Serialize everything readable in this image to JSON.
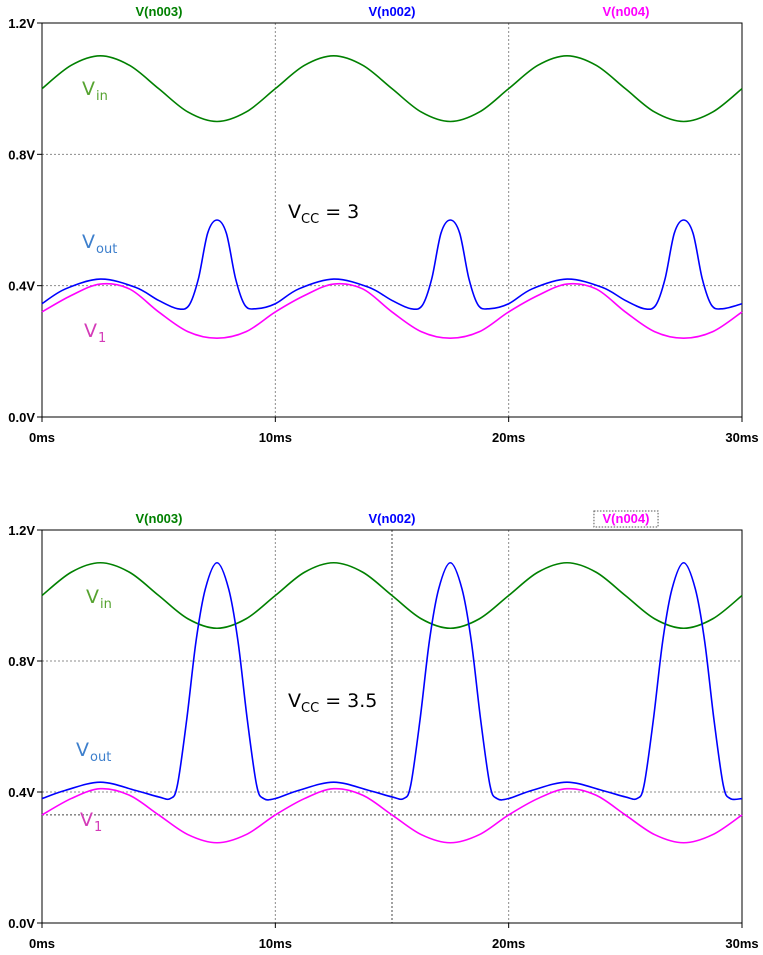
{
  "colors": {
    "vin": "#008000",
    "vout": "#0000ff",
    "v1": "#ff00ff",
    "vin_label": "#56a330",
    "vout_label": "#3d7fcc",
    "v1_label": "#d43bb8"
  },
  "chart_data": [
    {
      "type": "line",
      "title": "",
      "xlabel": "",
      "ylabel": "",
      "xlim": [
        0,
        30
      ],
      "ylim": [
        0,
        1.2
      ],
      "x_unit": "ms",
      "x_ticks": [
        "0ms",
        "10ms",
        "20ms",
        "30ms"
      ],
      "y_ticks": [
        "0.0V",
        "0.4V",
        "0.8V",
        "1.2V"
      ],
      "grid": true,
      "legend": [
        "V(n003)",
        "V(n002)",
        "V(n004)"
      ],
      "annotation": {
        "main": "V",
        "sub": "CC",
        "rest": " = 3"
      },
      "series": [
        {
          "name": "V(n003)",
          "label": "V",
          "label_sub": "in",
          "color": "#008000",
          "x": [
            0,
            1.25,
            2.5,
            3.75,
            5,
            6.25,
            7.5,
            8.75,
            10,
            11.25,
            12.5,
            13.75,
            15,
            16.25,
            17.5,
            18.75,
            20,
            21.25,
            22.5,
            23.75,
            25,
            26.25,
            27.5,
            28.75,
            30
          ],
          "values": [
            1.0,
            1.071,
            1.1,
            1.071,
            1.0,
            0.929,
            0.9,
            0.929,
            1.0,
            1.071,
            1.1,
            1.071,
            1.0,
            0.929,
            0.9,
            0.929,
            1.0,
            1.071,
            1.1,
            1.071,
            1.0,
            0.929,
            0.9,
            0.929,
            1.0
          ]
        },
        {
          "name": "V(n002)",
          "label": "V",
          "label_sub": "out",
          "color": "#0000ff",
          "x": [
            0,
            1,
            2.5,
            4,
            5,
            5.8,
            6.3,
            6.7,
            7.1,
            7.5,
            7.9,
            8.3,
            8.7,
            9.2,
            10,
            11,
            12.5,
            14,
            15,
            15.8,
            16.3,
            16.7,
            17.1,
            17.5,
            17.9,
            18.3,
            18.7,
            19.2,
            20,
            21,
            22.5,
            24,
            25,
            25.8,
            26.3,
            26.7,
            27.1,
            27.5,
            27.9,
            28.3,
            28.7,
            29.2,
            30
          ],
          "values": [
            0.345,
            0.39,
            0.42,
            0.395,
            0.355,
            0.33,
            0.34,
            0.42,
            0.56,
            0.6,
            0.56,
            0.42,
            0.34,
            0.33,
            0.345,
            0.39,
            0.42,
            0.395,
            0.355,
            0.33,
            0.34,
            0.42,
            0.56,
            0.6,
            0.56,
            0.42,
            0.34,
            0.33,
            0.345,
            0.39,
            0.42,
            0.395,
            0.355,
            0.33,
            0.34,
            0.42,
            0.56,
            0.6,
            0.56,
            0.42,
            0.34,
            0.33,
            0.345
          ]
        },
        {
          "name": "V(n004)",
          "label": "V",
          "label_sub": "1",
          "color": "#ff00ff",
          "x": [
            0,
            1.25,
            2.5,
            3.75,
            5,
            6.25,
            7.5,
            8.75,
            10,
            11.25,
            12.5,
            13.75,
            15,
            16.25,
            17.5,
            18.75,
            20,
            21.25,
            22.5,
            23.75,
            25,
            26.25,
            27.5,
            28.75,
            30
          ],
          "values": [
            0.32,
            0.37,
            0.405,
            0.39,
            0.32,
            0.26,
            0.24,
            0.26,
            0.32,
            0.37,
            0.405,
            0.39,
            0.32,
            0.26,
            0.24,
            0.26,
            0.32,
            0.37,
            0.405,
            0.39,
            0.32,
            0.26,
            0.24,
            0.26,
            0.32
          ]
        }
      ]
    },
    {
      "type": "line",
      "title": "",
      "xlabel": "",
      "ylabel": "",
      "xlim": [
        0,
        30
      ],
      "ylim": [
        0,
        1.2
      ],
      "x_unit": "ms",
      "x_ticks": [
        "0ms",
        "10ms",
        "20ms",
        "30ms"
      ],
      "y_ticks": [
        "0.0V",
        "0.4V",
        "0.8V",
        "1.2V"
      ],
      "grid": true,
      "cursor_x": 15,
      "cursor_y": 0.33,
      "legend": [
        "V(n003)",
        "V(n002)",
        "V(n004)"
      ],
      "selected_legend": "V(n004)",
      "annotation": {
        "main": "V",
        "sub": "CC",
        "rest": " = 3.5"
      },
      "series": [
        {
          "name": "V(n003)",
          "label": "V",
          "label_sub": "in",
          "color": "#008000",
          "x": [
            0,
            1.25,
            2.5,
            3.75,
            5,
            6.25,
            7.5,
            8.75,
            10,
            11.25,
            12.5,
            13.75,
            15,
            16.25,
            17.5,
            18.75,
            20,
            21.25,
            22.5,
            23.75,
            25,
            26.25,
            27.5,
            28.75,
            30
          ],
          "values": [
            1.0,
            1.071,
            1.1,
            1.071,
            1.0,
            0.929,
            0.9,
            0.929,
            1.0,
            1.071,
            1.1,
            1.071,
            1.0,
            0.929,
            0.9,
            0.929,
            1.0,
            1.071,
            1.1,
            1.071,
            1.0,
            0.929,
            0.9,
            0.929,
            1.0
          ]
        },
        {
          "name": "V(n002)",
          "label": "V",
          "label_sub": "out",
          "color": "#0000ff",
          "x": [
            0,
            1,
            2.5,
            4,
            5,
            5.5,
            5.8,
            6.2,
            6.6,
            7,
            7.5,
            8,
            8.4,
            8.8,
            9.2,
            9.5,
            10,
            11,
            12.5,
            14,
            15,
            15.5,
            15.8,
            16.2,
            16.6,
            17,
            17.5,
            18,
            18.4,
            18.8,
            19.2,
            19.5,
            20,
            21,
            22.5,
            24,
            25,
            25.5,
            25.8,
            26.2,
            26.6,
            27,
            27.5,
            28,
            28.4,
            28.8,
            29.2,
            29.5,
            30
          ],
          "values": [
            0.38,
            0.405,
            0.43,
            0.405,
            0.385,
            0.38,
            0.42,
            0.62,
            0.86,
            1.02,
            1.1,
            1.02,
            0.86,
            0.62,
            0.42,
            0.38,
            0.38,
            0.405,
            0.43,
            0.405,
            0.385,
            0.38,
            0.42,
            0.62,
            0.86,
            1.02,
            1.1,
            1.02,
            0.86,
            0.62,
            0.42,
            0.38,
            0.38,
            0.405,
            0.43,
            0.405,
            0.385,
            0.38,
            0.42,
            0.62,
            0.86,
            1.02,
            1.1,
            1.02,
            0.86,
            0.62,
            0.42,
            0.38,
            0.38
          ]
        },
        {
          "name": "V(n004)",
          "label": "V",
          "label_sub": "1",
          "color": "#ff00ff",
          "x": [
            0,
            1.25,
            2.5,
            3.75,
            5,
            6.25,
            7.5,
            8.75,
            10,
            11.25,
            12.5,
            13.75,
            15,
            16.25,
            17.5,
            18.75,
            20,
            21.25,
            22.5,
            23.75,
            25,
            26.25,
            27.5,
            28.75,
            30
          ],
          "values": [
            0.33,
            0.38,
            0.41,
            0.39,
            0.33,
            0.27,
            0.245,
            0.27,
            0.33,
            0.38,
            0.41,
            0.39,
            0.33,
            0.27,
            0.245,
            0.27,
            0.33,
            0.38,
            0.41,
            0.39,
            0.33,
            0.27,
            0.245,
            0.27,
            0.33
          ]
        }
      ]
    }
  ]
}
